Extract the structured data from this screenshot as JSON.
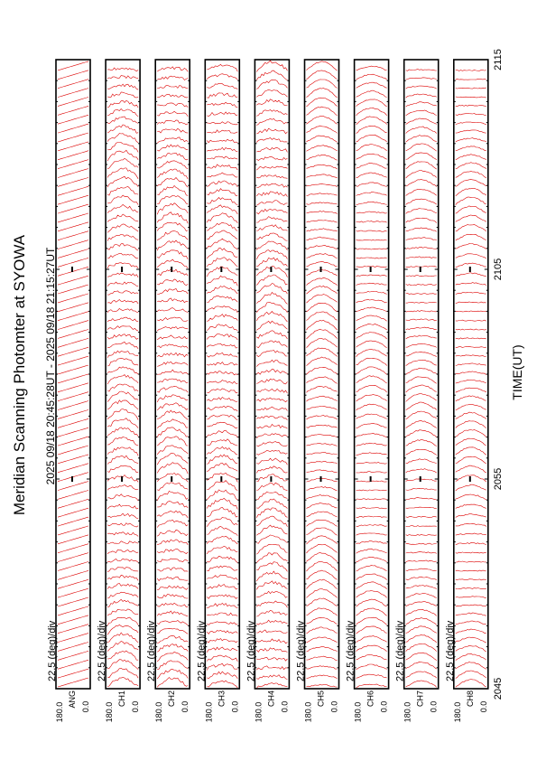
{
  "title": "Meridian Scanning Photomter at SYOWA",
  "time_range": "2025 09/18 20:45:28UT - 2025 09/18 21:15:27UT",
  "xlabel": "TIME(UT)",
  "colors": {
    "trace": "#dd0000",
    "frame": "#000000",
    "background": "#ffffff"
  },
  "chart_data": {
    "type": "line",
    "title": "Meridian Scanning Photomter at SYOWA",
    "subtitle": "2025 09/18 20:45:28UT - 2025 09/18 21:15:27UT",
    "xlabel": "TIME(UT)",
    "x_ticks": [
      "2045",
      "2055",
      "2105",
      "2115"
    ],
    "xlim_minutes_after_2045": [
      0,
      30
    ],
    "scale_label": "22.5 (deg)/div",
    "panels": [
      {
        "channel": "ANG",
        "ylim": [
          0.0,
          180.0
        ],
        "ytick_labels": [
          "0.0",
          "180.0"
        ],
        "scale_label": "22.5 (deg)/div"
      },
      {
        "channel": "CH1",
        "ylim": [
          0.0,
          180.0
        ],
        "ytick_labels": [
          "0.0",
          "180.0"
        ],
        "scale_label": "22.5 (deg)/div"
      },
      {
        "channel": "CH2",
        "ylim": [
          0.0,
          180.0
        ],
        "ytick_labels": [
          "0.0",
          "180.0"
        ],
        "scale_label": "22.5 (deg)/div"
      },
      {
        "channel": "CH3",
        "ylim": [
          0.0,
          180.0
        ],
        "ytick_labels": [
          "0.0",
          "180.0"
        ],
        "scale_label": "22.5 (deg)/div"
      },
      {
        "channel": "CH4",
        "ylim": [
          0.0,
          180.0
        ],
        "ytick_labels": [
          "0.0",
          "180.0"
        ],
        "scale_label": "22.5 (deg)/div"
      },
      {
        "channel": "CH5",
        "ylim": [
          0.0,
          180.0
        ],
        "ytick_labels": [
          "0.0",
          "180.0"
        ],
        "scale_label": "22.5 (deg)/div"
      },
      {
        "channel": "CH6",
        "ylim": [
          0.0,
          180.0
        ],
        "ytick_labels": [
          "0.0",
          "180.0"
        ],
        "scale_label": "22.5 (deg)/div"
      },
      {
        "channel": "CH7",
        "ylim": [
          0.0,
          180.0
        ],
        "ytick_labels": [
          "0.0",
          "180.0"
        ],
        "scale_label": "22.5 (deg)/div"
      },
      {
        "channel": "CH8",
        "ylim": [
          0.0,
          180.0
        ],
        "ytick_labels": [
          "0.0",
          "180.0"
        ],
        "scale_label": "22.5 (deg)/div"
      }
    ],
    "grid": false,
    "legend": "none"
  }
}
